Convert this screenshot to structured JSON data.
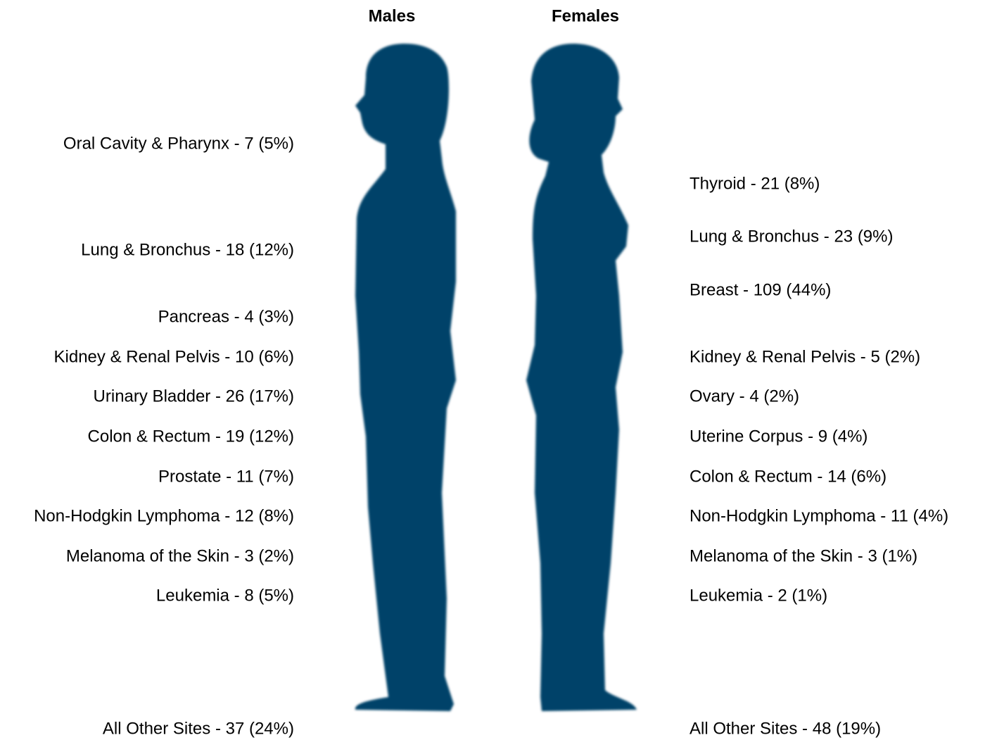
{
  "headers": {
    "males": "Males",
    "females": "Females"
  },
  "males": [
    "Oral Cavity & Pharynx - 7 (5%)",
    "Lung & Bronchus - 18 (12%)",
    "Pancreas - 4 (3%)",
    "Kidney & Renal Pelvis - 10 (6%)",
    "Urinary Bladder - 26 (17%)",
    "Colon & Rectum - 19 (12%)",
    "Prostate - 11 (7%)",
    "Non-Hodgkin Lymphoma - 12 (8%)",
    "Melanoma of the Skin - 3 (2%)",
    "Leukemia - 8 (5%)",
    "All Other Sites - 37 (24%)"
  ],
  "females": [
    "Thyroid - 21 (8%)",
    "Lung & Bronchus - 23 (9%)",
    "Breast - 109 (44%)",
    "Kidney & Renal Pelvis - 5 (2%)",
    "Ovary - 4 (2%)",
    "Uterine Corpus - 9 (4%)",
    "Colon & Rectum - 14 (6%)",
    "Non-Hodgkin Lymphoma - 11 (4%)",
    "Melanoma of the Skin - 3 (1%)",
    "Leukemia - 2 (1%)",
    "All Other Sites - 48 (19%)"
  ]
}
